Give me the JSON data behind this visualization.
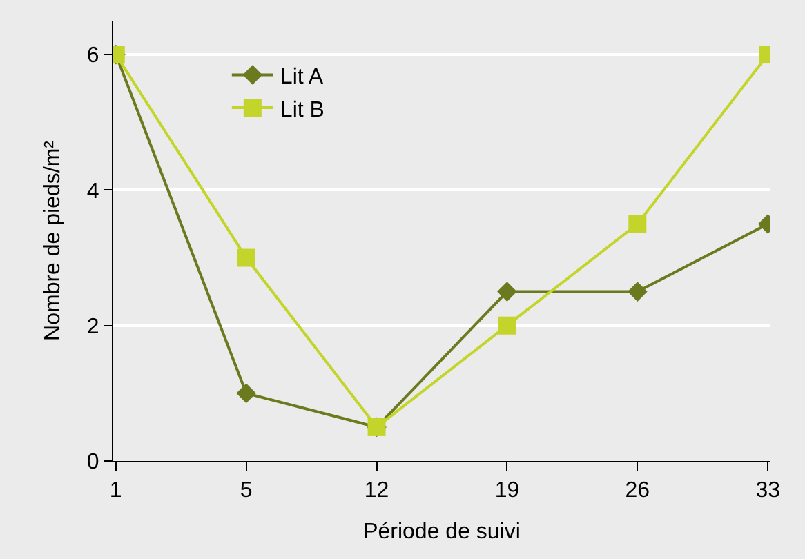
{
  "chart_data": {
    "type": "line",
    "xlabel": "Période de suivi",
    "ylabel": "Nombre de pieds/m²",
    "categories": [
      "1",
      "5",
      "12",
      "19",
      "26",
      "33"
    ],
    "series": [
      {
        "name": "Lit A",
        "color": "#6b7a1f",
        "marker": "diamond",
        "values": [
          6,
          1,
          0.5,
          2.5,
          2.5,
          3.5
        ]
      },
      {
        "name": "Lit B",
        "color": "#c3d52b",
        "marker": "square",
        "values": [
          6,
          3,
          0.5,
          2,
          3.5,
          6
        ]
      }
    ],
    "ylim": [
      0,
      6.5
    ],
    "yticks": [
      0,
      2,
      4,
      6
    ],
    "grid": "y",
    "legend": "top left",
    "line_style": "solid"
  }
}
